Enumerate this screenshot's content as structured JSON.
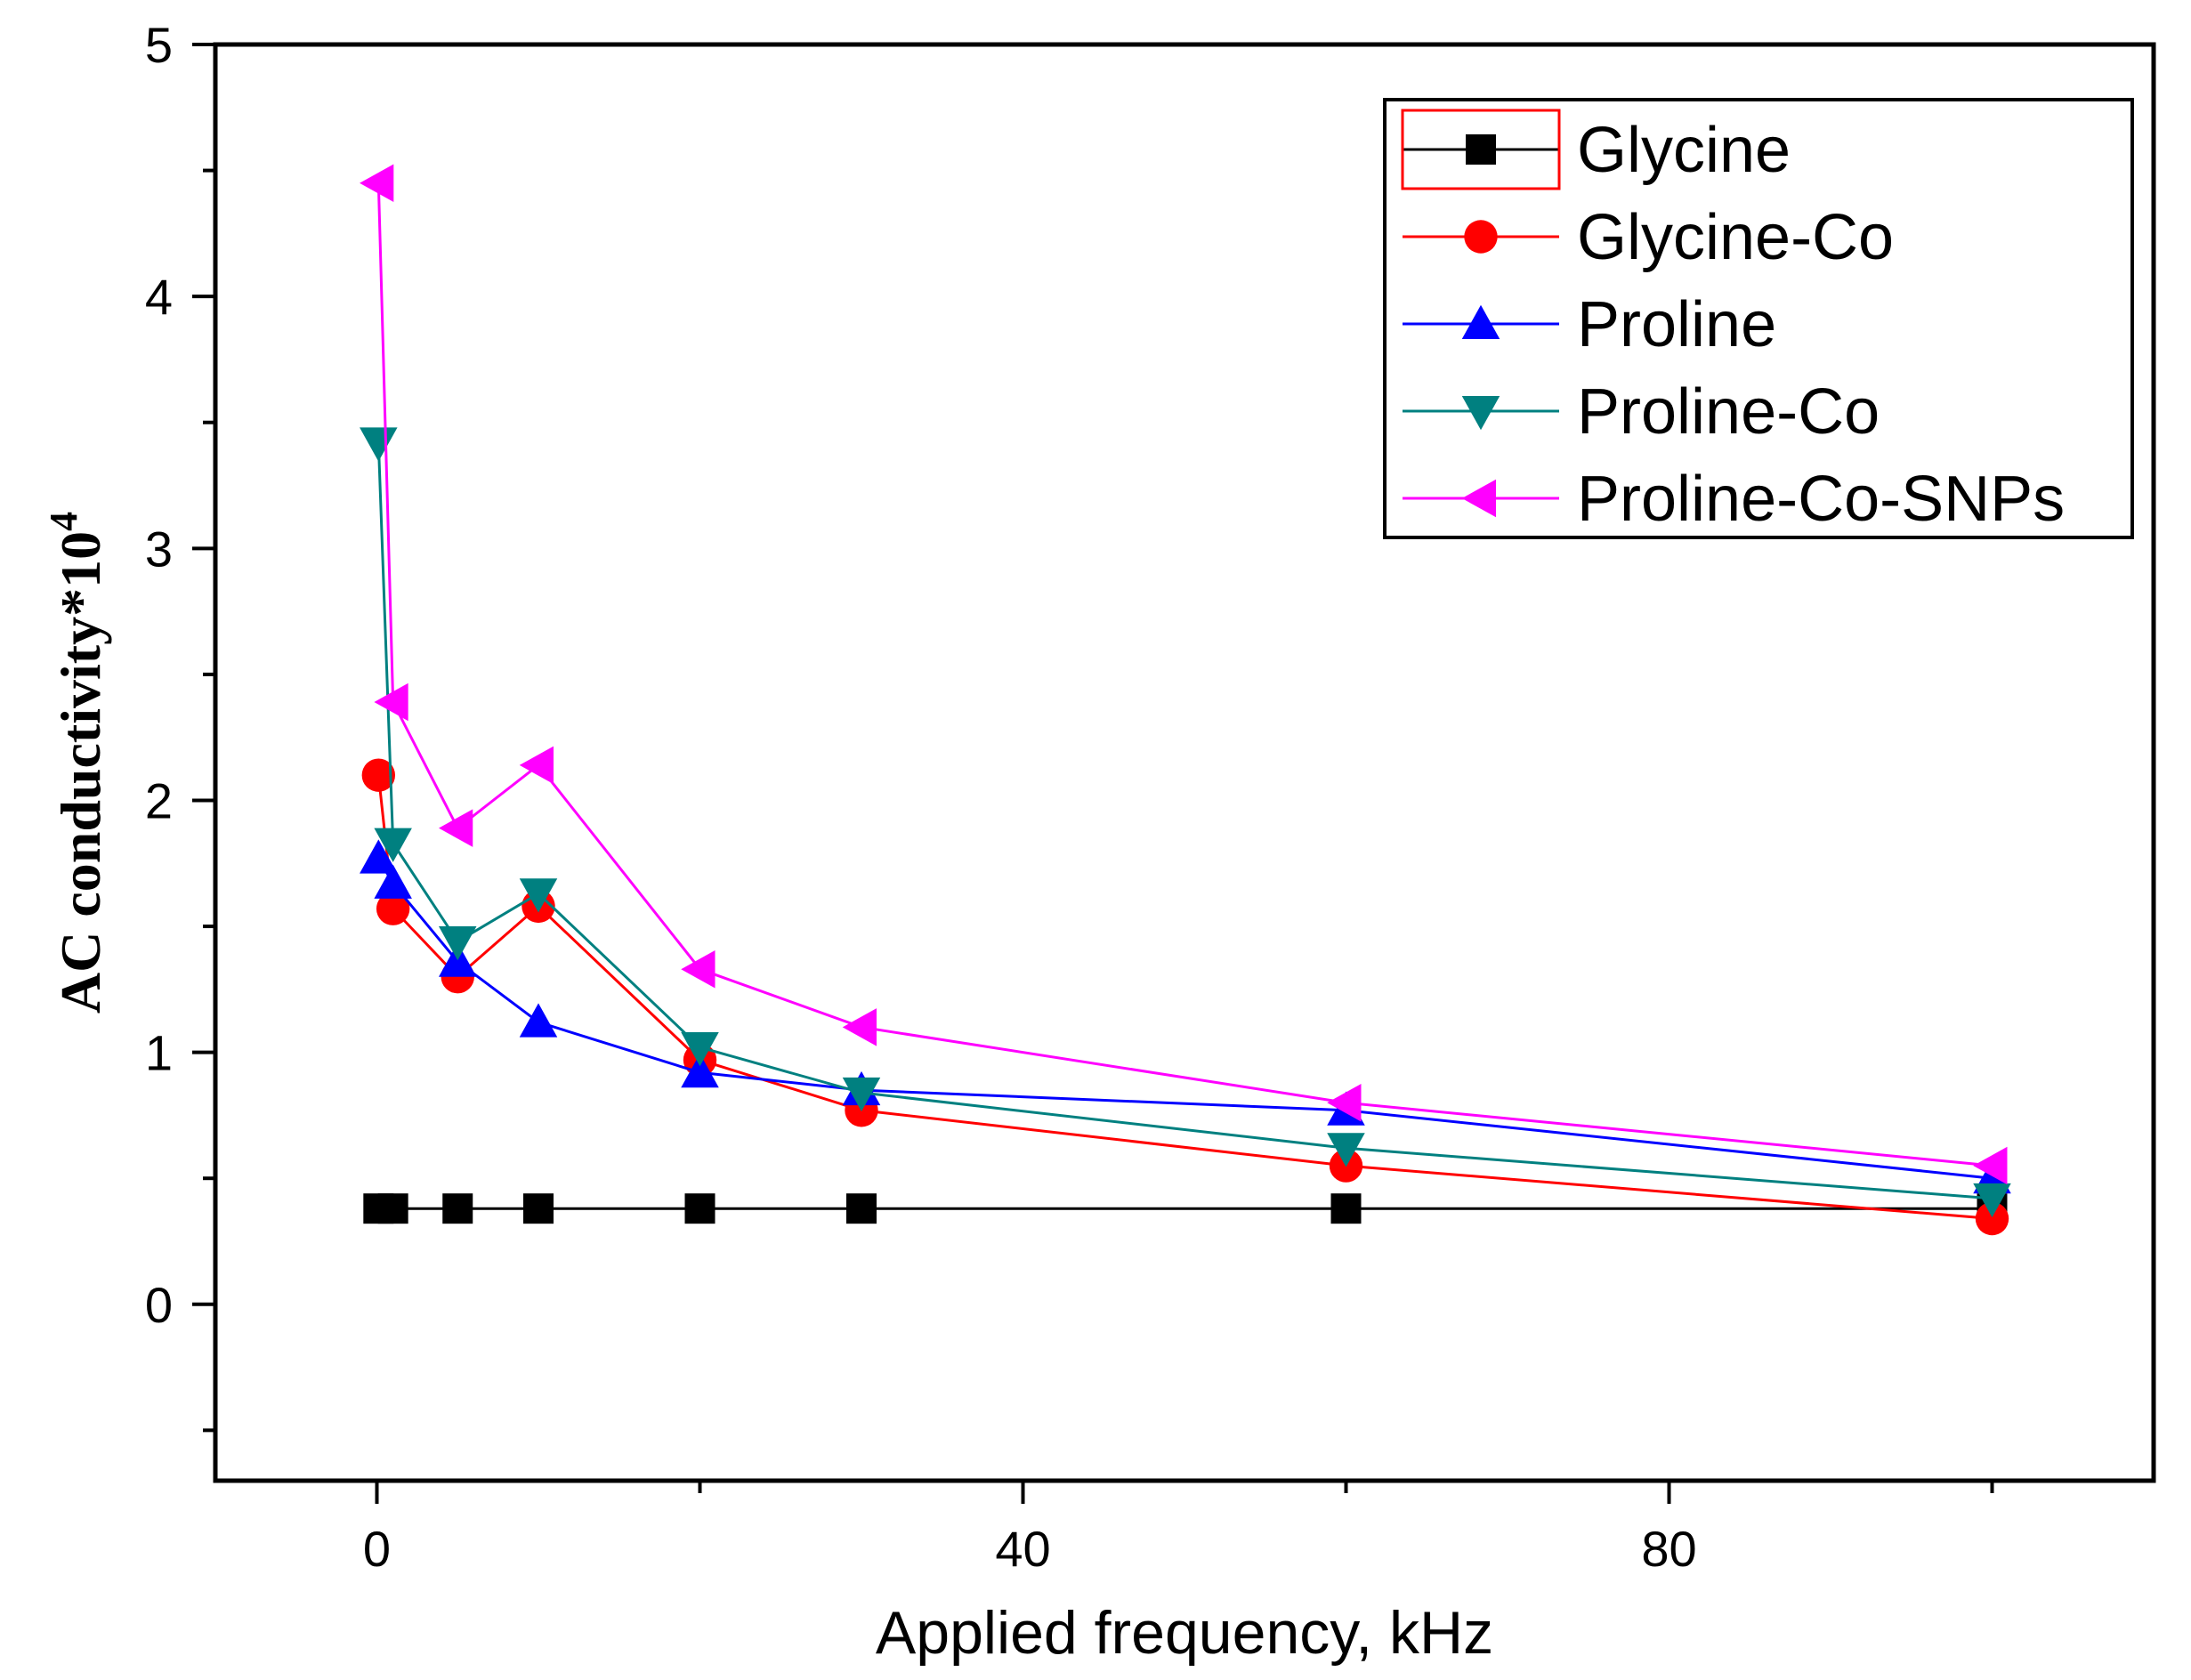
{
  "chart_data": {
    "type": "line",
    "title": "",
    "xlabel": "Applied frequency, kHz",
    "ylabel_main": "AC conductivity*10",
    "ylabel_sup": "4",
    "xlim": [
      -10,
      110
    ],
    "ylim": [
      -0.7,
      5
    ],
    "xticks": [
      0,
      40,
      80
    ],
    "xtick_labels": [
      "0",
      "40",
      "80"
    ],
    "yticks": [
      0,
      1,
      2,
      3,
      4,
      5
    ],
    "ytick_labels": [
      "0",
      "1",
      "2",
      "3",
      "4",
      "5"
    ],
    "x": [
      0.1,
      1,
      5,
      10,
      20,
      30,
      60,
      100
    ],
    "legend_position": "top-right",
    "series": [
      {
        "name": "Glycine",
        "color": "#000000",
        "marker": "square",
        "values": [
          0.38,
          0.38,
          0.38,
          0.38,
          0.38,
          0.38,
          0.38,
          0.38
        ]
      },
      {
        "name": "Glycine-Co",
        "color": "#ff0000",
        "marker": "circle",
        "values": [
          2.1,
          1.57,
          1.3,
          1.58,
          0.97,
          0.77,
          0.55,
          0.34
        ]
      },
      {
        "name": "Proline",
        "color": "#0000ff",
        "marker": "triangle-up",
        "values": [
          1.77,
          1.67,
          1.36,
          1.12,
          0.92,
          0.85,
          0.77,
          0.5
        ]
      },
      {
        "name": "Proline-Co",
        "color": "#008080",
        "marker": "triangle-down",
        "values": [
          3.42,
          1.83,
          1.44,
          1.63,
          1.02,
          0.84,
          0.62,
          0.42
        ]
      },
      {
        "name": "Proline-Co-SNPs",
        "color": "#ff00ff",
        "marker": "triangle-left",
        "values": [
          4.45,
          2.39,
          1.89,
          2.14,
          1.33,
          1.1,
          0.8,
          0.55
        ]
      }
    ]
  }
}
